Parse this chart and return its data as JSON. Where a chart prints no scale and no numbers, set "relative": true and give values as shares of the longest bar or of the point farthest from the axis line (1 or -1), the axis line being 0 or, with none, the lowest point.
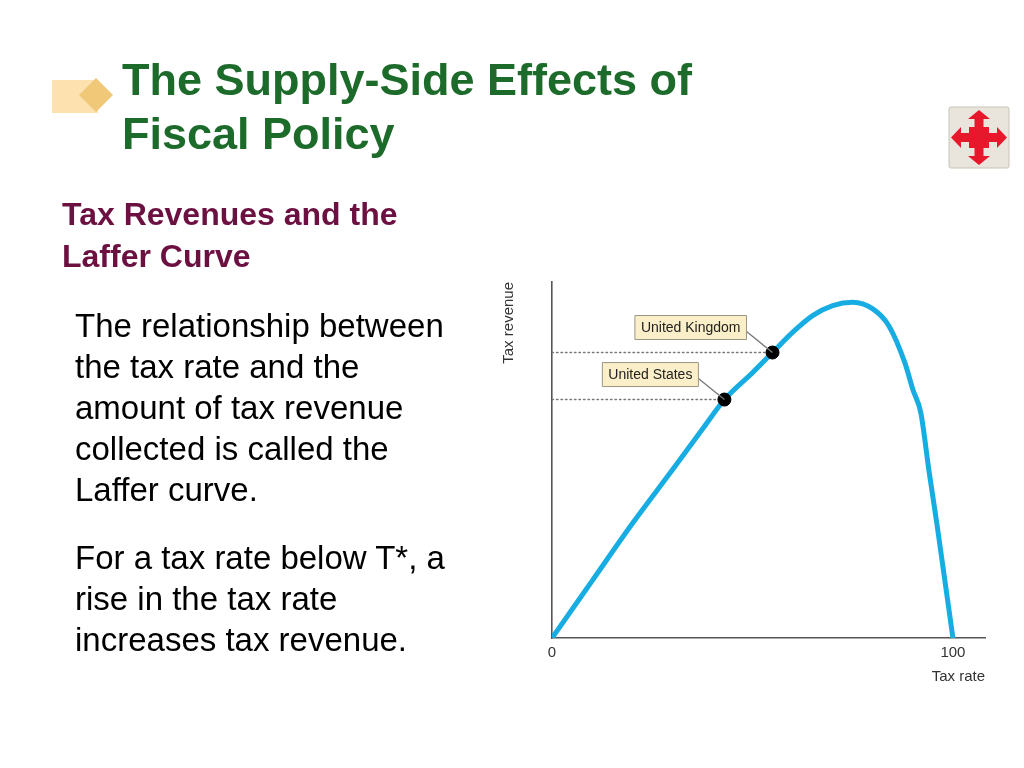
{
  "chart_data": {
    "type": "line",
    "title": "The Supply-Side Effects of Fiscal Policy",
    "subtitle": "Tax Revenues and the Laffer Curve",
    "xlabel": "Tax rate",
    "ylabel": "Tax revenue",
    "relative": true,
    "xlim": [
      0,
      108
    ],
    "xticks": [
      0,
      100
    ],
    "line_style": "solid",
    "series": [
      {
        "color": "#777777",
        "line_style": "dotted",
        "x": [
          0,
          43
        ],
        "values": [
          0.71,
          0.71
        ]
      },
      {
        "color": "#777777",
        "line_style": "dotted",
        "x": [
          0,
          55
        ],
        "values": [
          0.85,
          0.85
        ]
      },
      {
        "color": "#17ade3",
        "x": [
          0,
          10,
          20,
          30,
          38,
          43,
          50,
          55,
          60,
          65,
          70,
          75,
          80,
          84,
          88,
          90,
          92,
          94,
          96,
          98,
          100
        ],
        "values": [
          0,
          0.17,
          0.34,
          0.5,
          0.63,
          0.71,
          0.79,
          0.85,
          0.91,
          0.96,
          0.99,
          1,
          0.98,
          0.93,
          0.82,
          0.74,
          0.67,
          0.5,
          0.34,
          0.17,
          0
        ]
      },
      {
        "type": "scatter",
        "color": "#000000",
        "marker": "circle",
        "x": [
          43,
          55
        ],
        "values": [
          0.71,
          0.85
        ]
      }
    ],
    "annotations": [
      "The relationship between the tax rate and the amount of tax revenue collected is called the Laffer curve.",
      "For a tax rate below T*, a rise in the tax rate increases tax revenue.",
      {
        "text": "United Kingdom",
        "x": 55,
        "y": 0.85
      },
      {
        "text": "United States",
        "x": 43,
        "y": 0.71
      }
    ]
  }
}
